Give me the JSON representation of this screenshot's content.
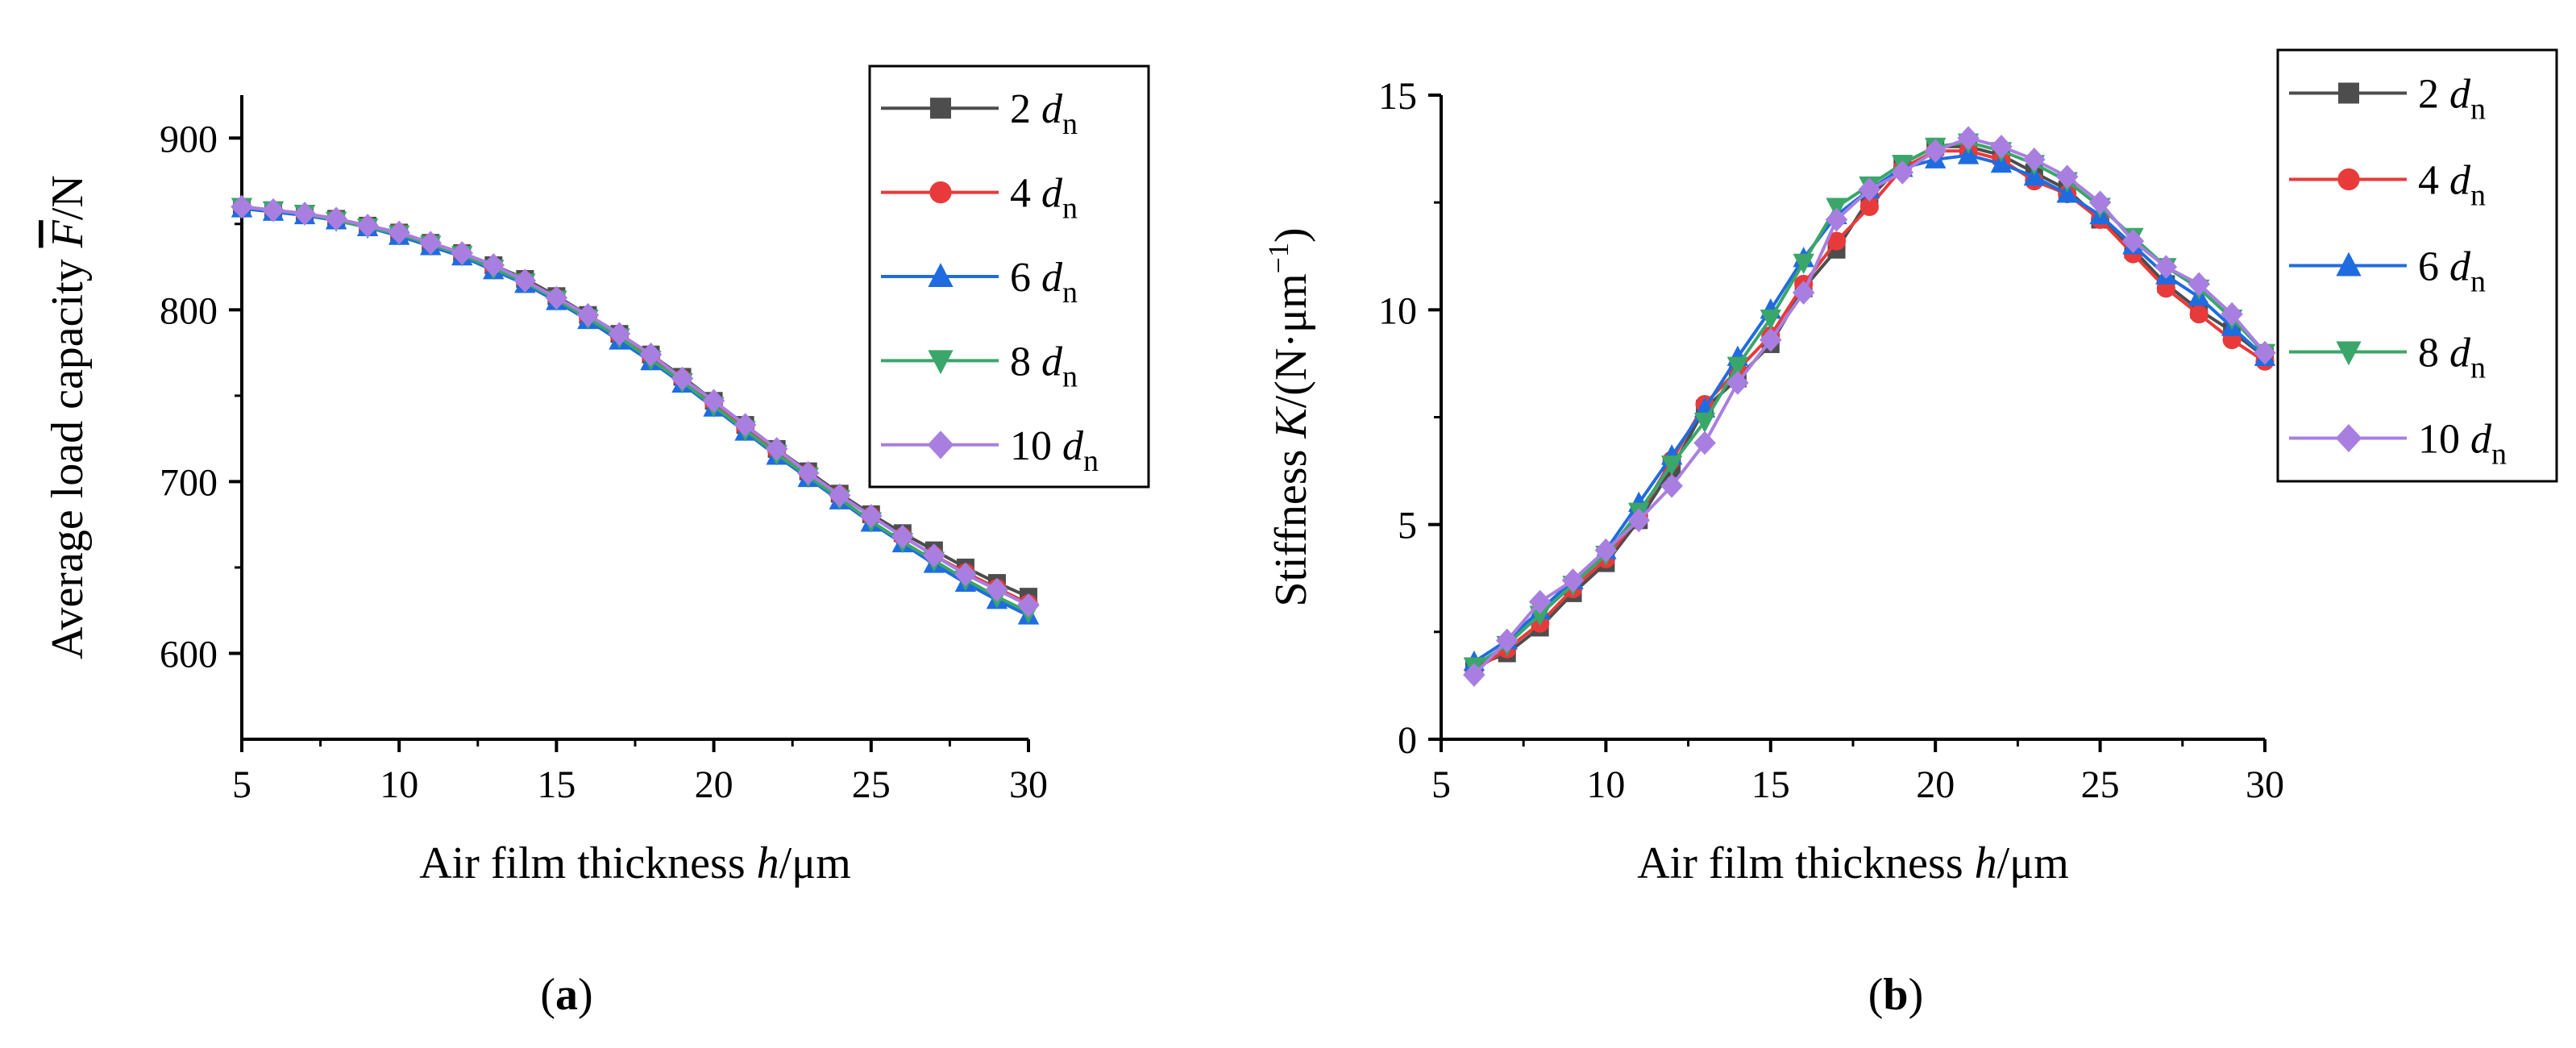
{
  "chart_data": [
    {
      "type": "line",
      "panel_label": "(a)",
      "panel_letter": "a",
      "title": "",
      "xlabel": "Air film thickness h/μm",
      "xlabel_parts": {
        "pre": "Air film thickness ",
        "var": "h",
        "post": "/μm"
      },
      "ylabel": "Average load capacity F̄/N",
      "ylabel_parts": {
        "pre": "Average load capacity ",
        "var": "F",
        "post": "/N"
      },
      "xlim": [
        5,
        30
      ],
      "ylim": [
        550,
        925
      ],
      "xticks": [
        5,
        10,
        15,
        20,
        25,
        30
      ],
      "yticks": [
        600,
        700,
        800,
        900
      ],
      "legend_position": "top-right",
      "x": [
        5,
        6,
        7,
        8,
        9,
        10,
        11,
        12,
        13,
        14,
        15,
        16,
        17,
        18,
        19,
        20,
        21,
        22,
        23,
        24,
        25,
        26,
        27,
        28,
        29,
        30
      ],
      "series": [
        {
          "name": "2 dn",
          "num": "2",
          "color": "#4d4d4d",
          "marker": "square",
          "values": [
            860,
            858,
            856,
            853,
            849,
            845,
            839,
            833,
            826,
            818,
            808,
            797,
            786,
            774,
            761,
            747,
            733,
            719,
            706,
            693,
            681,
            670,
            660,
            650,
            641,
            633
          ]
        },
        {
          "name": "4 dn",
          "num": "4",
          "color": "#e83a3a",
          "marker": "circle",
          "values": [
            860,
            858,
            856,
            853,
            849,
            845,
            839,
            833,
            825,
            817,
            807,
            796,
            785,
            773,
            760,
            746,
            732,
            718,
            705,
            692,
            680,
            668,
            657,
            647,
            638,
            629
          ]
        },
        {
          "name": "6 dn",
          "num": "6",
          "color": "#1f6ce0",
          "marker": "triangle-up",
          "values": [
            859,
            857,
            855,
            852,
            848,
            843,
            837,
            831,
            823,
            815,
            805,
            794,
            782,
            770,
            757,
            743,
            729,
            715,
            702,
            689,
            676,
            664,
            652,
            641,
            631,
            622
          ]
        },
        {
          "name": "8 dn",
          "num": "8",
          "color": "#3aa66a",
          "marker": "triangle-down",
          "values": [
            860,
            858,
            856,
            852,
            848,
            844,
            838,
            832,
            824,
            816,
            806,
            795,
            784,
            771,
            758,
            744,
            730,
            716,
            703,
            690,
            677,
            665,
            654,
            643,
            633,
            624
          ]
        },
        {
          "name": "10 dn",
          "num": "10",
          "color": "#a87fe0",
          "marker": "diamond",
          "values": [
            860,
            858,
            856,
            853,
            849,
            845,
            839,
            833,
            826,
            817,
            807,
            797,
            786,
            774,
            760,
            747,
            733,
            719,
            705,
            692,
            680,
            668,
            657,
            646,
            637,
            628
          ]
        }
      ]
    },
    {
      "type": "line",
      "panel_label": "(b)",
      "panel_letter": "b",
      "title": "",
      "xlabel": "Air film thickness h/μm",
      "xlabel_parts": {
        "pre": "Air film thickness ",
        "var": "h",
        "post": "/μm"
      },
      "ylabel": "Stiffness K/(N·μm−1)",
      "ylabel_parts": {
        "pre": "Stiffness ",
        "var": "K",
        "post": "/(N·μm",
        "sup": "−1",
        "close": ")"
      },
      "xlim": [
        5,
        30
      ],
      "ylim": [
        0,
        15
      ],
      "xticks": [
        5,
        10,
        15,
        20,
        25,
        30
      ],
      "yticks": [
        0,
        5,
        10,
        15
      ],
      "legend_position": "top-right",
      "x": [
        6,
        7,
        8,
        9,
        10,
        11,
        12,
        13,
        14,
        15,
        16,
        17,
        18,
        19,
        20,
        21,
        22,
        23,
        24,
        25,
        26,
        27,
        28,
        29,
        30
      ],
      "series": [
        {
          "name": "2 dn",
          "num": "2",
          "color": "#4d4d4d",
          "marker": "square",
          "values": [
            1.7,
            2.0,
            2.6,
            3.4,
            4.1,
            5.1,
            6.3,
            7.7,
            8.4,
            9.2,
            10.5,
            11.4,
            12.6,
            13.4,
            13.8,
            13.8,
            13.6,
            13.2,
            12.8,
            12.1,
            11.4,
            10.6,
            10.0,
            9.5,
            8.9
          ]
        },
        {
          "name": "4 dn",
          "num": "4",
          "color": "#e83a3a",
          "marker": "circle",
          "values": [
            1.6,
            2.1,
            2.7,
            3.5,
            4.2,
            5.2,
            6.5,
            7.8,
            8.6,
            9.4,
            10.6,
            11.6,
            12.4,
            13.3,
            13.7,
            13.7,
            13.5,
            13.0,
            12.7,
            12.1,
            11.3,
            10.5,
            9.9,
            9.3,
            8.8
          ]
        },
        {
          "name": "6 dn",
          "num": "6",
          "color": "#1f6ce0",
          "marker": "triangle-up",
          "values": [
            1.8,
            2.3,
            3.0,
            3.7,
            4.4,
            5.5,
            6.6,
            7.7,
            8.9,
            10.0,
            11.2,
            12.2,
            12.8,
            13.3,
            13.5,
            13.6,
            13.4,
            13.1,
            12.7,
            12.2,
            11.5,
            10.8,
            10.3,
            9.6,
            8.9
          ]
        },
        {
          "name": "8 dn",
          "num": "8",
          "color": "#3aa66a",
          "marker": "triangle-down",
          "values": [
            1.7,
            2.2,
            2.9,
            3.6,
            4.3,
            5.3,
            6.4,
            7.4,
            8.7,
            9.8,
            11.1,
            12.4,
            12.9,
            13.4,
            13.8,
            13.9,
            13.7,
            13.4,
            13.0,
            12.4,
            11.7,
            11.0,
            10.5,
            9.8,
            9.0
          ]
        },
        {
          "name": "10 dn",
          "num": "10",
          "color": "#a87fe0",
          "marker": "diamond",
          "values": [
            1.5,
            2.3,
            3.2,
            3.7,
            4.4,
            5.1,
            5.9,
            6.9,
            8.3,
            9.3,
            10.4,
            12.1,
            12.8,
            13.2,
            13.7,
            14.0,
            13.8,
            13.5,
            13.1,
            12.5,
            11.6,
            11.0,
            10.6,
            9.9,
            9.0
          ]
        }
      ]
    }
  ]
}
